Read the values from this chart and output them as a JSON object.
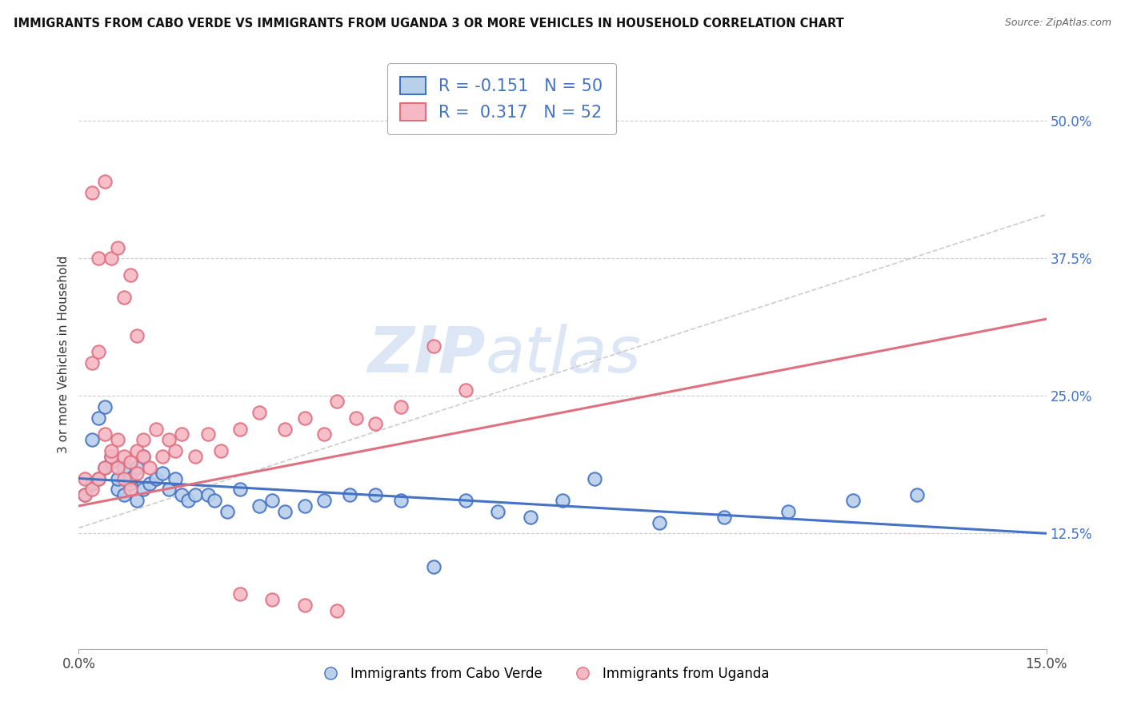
{
  "title": "IMMIGRANTS FROM CABO VERDE VS IMMIGRANTS FROM UGANDA 3 OR MORE VEHICLES IN HOUSEHOLD CORRELATION CHART",
  "source": "Source: ZipAtlas.com",
  "ylabel": "3 or more Vehicles in Household",
  "y_tick_labels": [
    "12.5%",
    "25.0%",
    "37.5%",
    "50.0%"
  ],
  "y_tick_values": [
    0.125,
    0.25,
    0.375,
    0.5
  ],
  "x_range": [
    0.0,
    0.15
  ],
  "y_range": [
    0.02,
    0.555
  ],
  "cabo_verde_R": -0.151,
  "cabo_verde_N": 50,
  "uganda_R": 0.317,
  "uganda_N": 52,
  "cabo_verde_color": "#b8d0ea",
  "uganda_color": "#f5b8c4",
  "cabo_verde_edge": "#4472c4",
  "uganda_edge": "#e07080",
  "cabo_verde_line_color": "#4472c4",
  "uganda_line_color": "#e07080",
  "watermark_color": "#dce6f5",
  "legend_label_1": "Immigrants from Cabo Verde",
  "legend_label_2": "Immigrants from Uganda",
  "cabo_verde_x": [
    0.001,
    0.002,
    0.002,
    0.003,
    0.003,
    0.004,
    0.004,
    0.005,
    0.005,
    0.006,
    0.006,
    0.007,
    0.007,
    0.008,
    0.008,
    0.009,
    0.009,
    0.01,
    0.01,
    0.011,
    0.012,
    0.013,
    0.014,
    0.015,
    0.016,
    0.017,
    0.018,
    0.02,
    0.021,
    0.023,
    0.025,
    0.028,
    0.03,
    0.032,
    0.035,
    0.038,
    0.042,
    0.046,
    0.05,
    0.055,
    0.06,
    0.065,
    0.07,
    0.075,
    0.08,
    0.09,
    0.1,
    0.11,
    0.12,
    0.13
  ],
  "cabo_verde_y": [
    0.16,
    0.17,
    0.21,
    0.175,
    0.23,
    0.185,
    0.24,
    0.19,
    0.195,
    0.165,
    0.175,
    0.185,
    0.16,
    0.17,
    0.175,
    0.155,
    0.185,
    0.165,
    0.195,
    0.17,
    0.175,
    0.18,
    0.165,
    0.175,
    0.16,
    0.155,
    0.16,
    0.16,
    0.155,
    0.145,
    0.165,
    0.15,
    0.155,
    0.145,
    0.15,
    0.155,
    0.16,
    0.16,
    0.155,
    0.095,
    0.155,
    0.145,
    0.14,
    0.155,
    0.175,
    0.135,
    0.14,
    0.145,
    0.155,
    0.16
  ],
  "uganda_x": [
    0.001,
    0.001,
    0.002,
    0.002,
    0.003,
    0.003,
    0.004,
    0.004,
    0.005,
    0.005,
    0.006,
    0.006,
    0.007,
    0.007,
    0.008,
    0.008,
    0.009,
    0.009,
    0.01,
    0.01,
    0.011,
    0.012,
    0.013,
    0.014,
    0.015,
    0.016,
    0.018,
    0.02,
    0.022,
    0.025,
    0.028,
    0.032,
    0.035,
    0.038,
    0.04,
    0.043,
    0.046,
    0.05,
    0.055,
    0.06,
    0.003,
    0.005,
    0.007,
    0.009,
    0.002,
    0.004,
    0.006,
    0.008,
    0.025,
    0.03,
    0.035,
    0.04
  ],
  "uganda_y": [
    0.16,
    0.175,
    0.165,
    0.28,
    0.175,
    0.29,
    0.185,
    0.215,
    0.195,
    0.2,
    0.185,
    0.21,
    0.175,
    0.195,
    0.19,
    0.165,
    0.2,
    0.18,
    0.195,
    0.21,
    0.185,
    0.22,
    0.195,
    0.21,
    0.2,
    0.215,
    0.195,
    0.215,
    0.2,
    0.22,
    0.235,
    0.22,
    0.23,
    0.215,
    0.245,
    0.23,
    0.225,
    0.24,
    0.295,
    0.255,
    0.375,
    0.375,
    0.34,
    0.305,
    0.435,
    0.445,
    0.385,
    0.36,
    0.07,
    0.065,
    0.06,
    0.055
  ]
}
